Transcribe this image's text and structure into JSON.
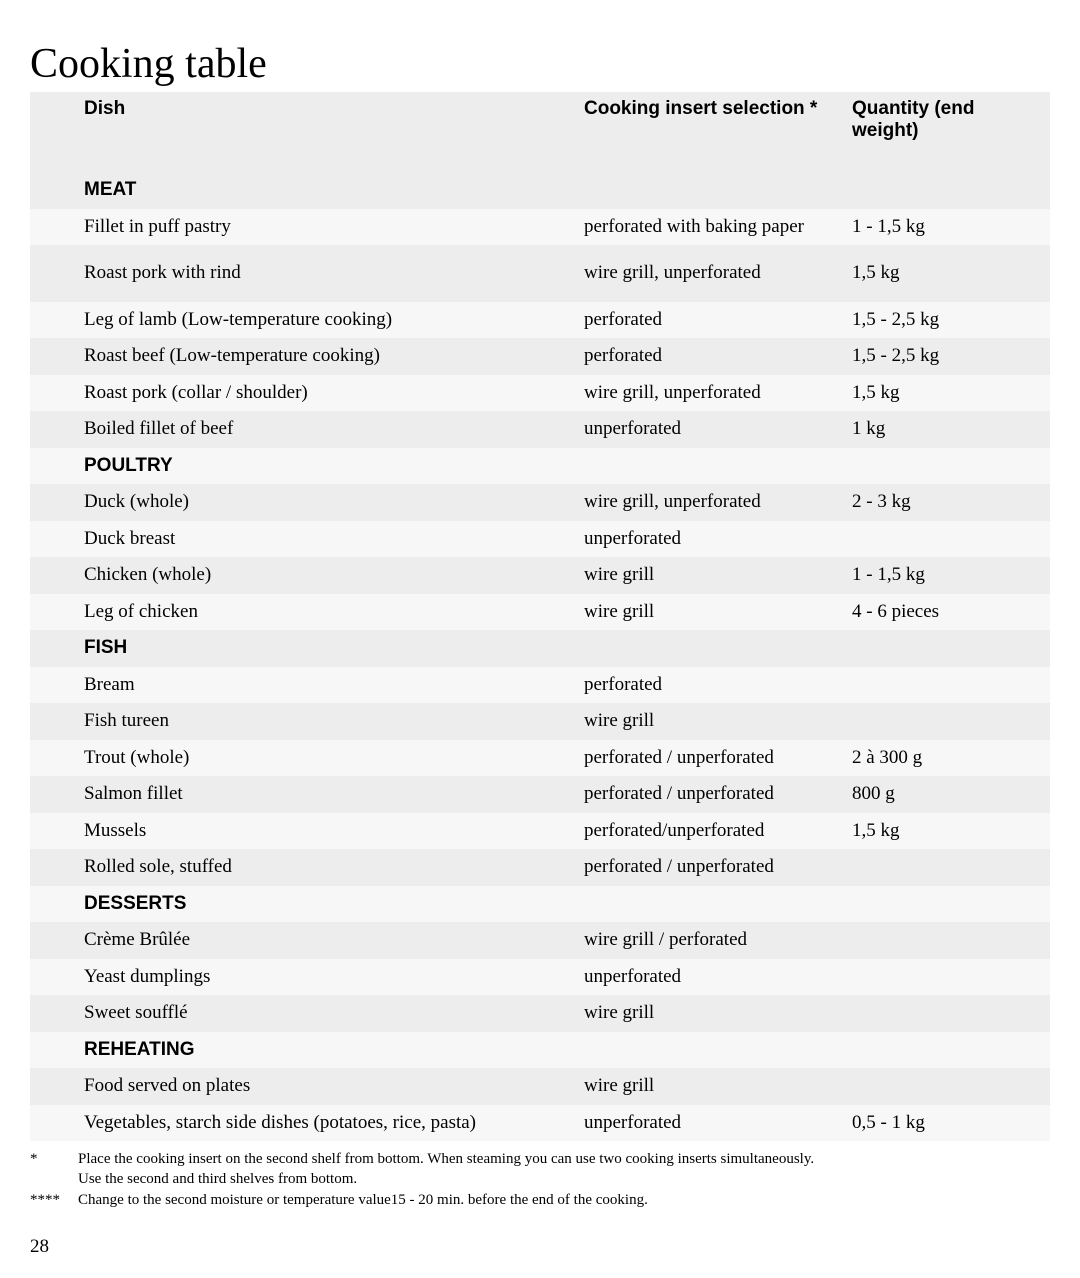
{
  "title": "Cooking table",
  "headers": {
    "dish": "Dish",
    "insert": "Cooking insert selection *",
    "qty": "Quantity (end weight)"
  },
  "sections": [
    {
      "name": "MEAT",
      "rows": [
        {
          "dish": "Fillet in puff pastry",
          "insert": "perforated with baking paper",
          "qty": "1 - 1,5 kg",
          "stripe": "b"
        },
        {
          "dish": "Roast pork with rind",
          "insert": "wire grill, unperforated",
          "qty": "1,5 kg",
          "stripe": "a",
          "tall": true
        },
        {
          "dish": "Leg of lamb (Low-temperature cooking)",
          "insert": "perforated",
          "qty": "1,5 - 2,5 kg",
          "stripe": "b"
        },
        {
          "dish": "Roast beef (Low-temperature cooking)",
          "insert": "perforated",
          "qty": "1,5 - 2,5 kg",
          "stripe": "a"
        },
        {
          "dish": "Roast pork (collar / shoulder)",
          "insert": "wire grill, unperforated",
          "qty": "1,5 kg",
          "stripe": "b"
        },
        {
          "dish": "Boiled fillet of beef",
          "insert": "unperforated",
          "qty": "1 kg",
          "stripe": "a"
        }
      ]
    },
    {
      "name": "POULTRY",
      "rows": [
        {
          "dish": "Duck (whole)",
          "insert": "wire grill, unperforated",
          "qty": "2 - 3 kg",
          "stripe": "a"
        },
        {
          "dish": "Duck breast",
          "insert": "unperforated",
          "qty": "",
          "stripe": "b"
        },
        {
          "dish": "Chicken (whole)",
          "insert": "wire grill",
          "qty": "1 - 1,5 kg",
          "stripe": "a"
        },
        {
          "dish": "Leg of chicken",
          "insert": "wire grill",
          "qty": "4 - 6 pieces",
          "stripe": "b"
        }
      ]
    },
    {
      "name": "FISH",
      "rows": [
        {
          "dish": "Bream",
          "insert": "perforated",
          "qty": "",
          "stripe": "b"
        },
        {
          "dish": "Fish tureen",
          "insert": "wire grill",
          "qty": "",
          "stripe": "a"
        },
        {
          "dish": "Trout (whole)",
          "insert": "perforated / unperforated",
          "qty": "2 à 300 g",
          "stripe": "b"
        },
        {
          "dish": "Salmon fillet",
          "insert": "perforated / unperforated",
          "qty": "800 g",
          "stripe": "a"
        },
        {
          "dish": "Mussels",
          "insert": "perforated/unperforated",
          "qty": "1,5 kg",
          "stripe": "b"
        },
        {
          "dish": "Rolled sole, stuffed",
          "insert": "perforated / unperforated",
          "qty": "",
          "stripe": "a"
        }
      ]
    },
    {
      "name": "DESSERTS",
      "rows": [
        {
          "dish": "Crème Brûlée",
          "insert": "wire grill / perforated",
          "qty": "",
          "stripe": "a"
        },
        {
          "dish": "Yeast dumplings",
          "insert": "unperforated",
          "qty": "",
          "stripe": "b"
        },
        {
          "dish": "Sweet soufflé",
          "insert": "wire grill",
          "qty": "",
          "stripe": "a"
        }
      ]
    },
    {
      "name": "REHEATING",
      "rows": [
        {
          "dish": "Food served on plates",
          "insert": "wire grill",
          "qty": "",
          "stripe": "a"
        },
        {
          "dish": "Vegetables, starch side dishes (potatoes, rice, pasta)",
          "insert": "unperforated",
          "qty": "0,5 - 1 kg",
          "stripe": "b"
        }
      ]
    }
  ],
  "footnotes": {
    "f1_mark": "*",
    "f1_text": "Place the cooking insert on the second shelf from bottom. When steaming you can use two cooking inserts simultaneously.",
    "f1_sub": "Use the second and third shelves from bottom.",
    "f2_mark": "****",
    "f2_text": "Change to the second moisture or temperature value15 - 20 min. before the end of the cooking."
  },
  "section_stripes": {
    "MEAT": "a",
    "POULTRY": "b",
    "FISH": "a",
    "DESSERTS": "b",
    "REHEATING": "b"
  },
  "page_number": "28"
}
